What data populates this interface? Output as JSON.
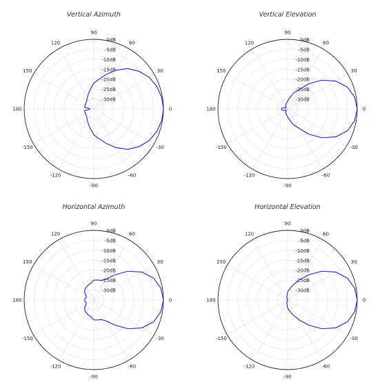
{
  "colors": {
    "pattern": "#1f1fcc",
    "grid": "#c8c8c8",
    "frame": "#222222"
  },
  "chart_data": [
    {
      "type": "polar-line",
      "title": "Vertical Azimuth",
      "angle_ticks": [
        "90",
        "60",
        "30",
        "0",
        "-30",
        "-60",
        "-90",
        "-120",
        "-150",
        "180",
        "150",
        "120"
      ],
      "radial_ticks": [
        "0dB",
        "-5dB",
        "-10dB",
        "-15dB",
        "-20dB",
        "-25dB",
        "-30dB"
      ],
      "rlim": [
        -35,
        0
      ],
      "series": [
        {
          "angles": [
            0,
            10,
            20,
            30,
            40,
            50,
            60,
            70,
            80,
            90,
            100,
            110,
            120,
            130,
            140,
            150,
            160,
            170,
            175,
            180,
            185,
            190,
            200,
            210,
            220,
            230,
            240,
            250,
            260,
            270,
            280,
            290,
            300,
            310,
            320,
            330,
            340,
            350,
            360
          ],
          "values": [
            0,
            -0.4,
            -1.4,
            -3,
            -5.5,
            -8.5,
            -12.5,
            -16.5,
            -19.8,
            -22,
            -25,
            -27,
            -28.5,
            -29.5,
            -30,
            -30.2,
            -30.3,
            -30.3,
            -33,
            -33,
            -33,
            -30.3,
            -30.3,
            -30.2,
            -30,
            -29.5,
            -28.5,
            -27,
            -25,
            -22,
            -19.8,
            -16.5,
            -12.5,
            -8.5,
            -5.5,
            -3,
            -1.4,
            -0.4,
            0
          ]
        }
      ]
    },
    {
      "type": "polar-line",
      "title": "Vertical Elevation",
      "angle_ticks": [
        "90",
        "60",
        "30",
        "0",
        "-30",
        "-60",
        "-90",
        "-120",
        "-150",
        "180",
        "150",
        "120"
      ],
      "radial_ticks": [
        "0dB",
        "-5dB",
        "-10dB",
        "-15dB",
        "-20dB",
        "-25dB",
        "-30dB"
      ],
      "rlim": [
        -35,
        0
      ],
      "series": [
        {
          "angles": [
            0,
            10,
            20,
            30,
            40,
            50,
            60,
            65,
            70,
            80,
            90,
            100,
            120,
            140,
            150,
            160,
            170,
            180,
            190,
            200,
            210,
            220,
            240,
            260,
            270,
            280,
            290,
            295,
            300,
            310,
            320,
            330,
            340,
            350,
            360
          ],
          "values": [
            0,
            -0.8,
            -3,
            -7,
            -12.5,
            -18.5,
            -24,
            -25.5,
            -26.5,
            -29.5,
            -31,
            -32,
            -33,
            -34,
            -34,
            -33,
            -32,
            -32,
            -32,
            -33,
            -34,
            -34,
            -33,
            -32,
            -31,
            -29.5,
            -26.5,
            -25.5,
            -24,
            -18.5,
            -12.5,
            -7,
            -3,
            -0.8,
            0
          ]
        }
      ]
    },
    {
      "type": "polar-line",
      "title": "Horizontal Azimuth",
      "angle_ticks": [
        "90",
        "60",
        "30",
        "0",
        "-30",
        "-60",
        "-90",
        "-120",
        "-150",
        "180",
        "150",
        "120"
      ],
      "radial_ticks": [
        "0dB",
        "-5dB",
        "-10dB",
        "-15dB",
        "-20dB",
        "-25dB",
        "-30dB"
      ],
      "rlim": [
        -35,
        0
      ],
      "series": [
        {
          "angles": [
            0,
            10,
            20,
            30,
            40,
            50,
            60,
            70,
            80,
            90,
            100,
            110,
            120,
            130,
            140,
            150,
            160,
            170,
            180,
            190,
            200,
            210,
            220,
            230,
            240,
            250,
            260,
            270,
            280,
            290,
            300,
            310,
            320,
            330,
            340,
            350,
            360
          ],
          "values": [
            0,
            -0.8,
            -3,
            -7,
            -12.5,
            -18.5,
            -23,
            -24.5,
            -24.8,
            -25,
            -26.5,
            -27,
            -27.5,
            -28,
            -29,
            -30.5,
            -31,
            -30.5,
            -30.5,
            -30.5,
            -31,
            -30.5,
            -29,
            -28,
            -27.5,
            -27,
            -26.5,
            -25,
            -24.8,
            -24.5,
            -23,
            -18.5,
            -12.5,
            -7,
            -3,
            -0.8,
            0
          ]
        }
      ]
    },
    {
      "type": "polar-line",
      "title": "Horizontal Elevation",
      "angle_ticks": [
        "90",
        "60",
        "30",
        "0",
        "-30",
        "-60",
        "-90",
        "-120",
        "-150",
        "180",
        "150",
        "120"
      ],
      "radial_ticks": [
        "0dB",
        "-5dB",
        "-10dB",
        "-15dB",
        "-20dB",
        "-25dB",
        "-30dB"
      ],
      "rlim": [
        -35,
        0
      ],
      "series": [
        {
          "angles": [
            0,
            10,
            20,
            30,
            40,
            50,
            60,
            70,
            80,
            90,
            100,
            110,
            120,
            150,
            180,
            210,
            240,
            250,
            260,
            270,
            280,
            290,
            300,
            310,
            320,
            330,
            340,
            350,
            360
          ],
          "values": [
            0,
            -0.8,
            -3,
            -7,
            -12.5,
            -18.5,
            -23.5,
            -27,
            -29.5,
            -31,
            -33,
            -34,
            -35,
            -35,
            -35,
            -35,
            -35,
            -34,
            -33,
            -31,
            -29.5,
            -27,
            -23.5,
            -18.5,
            -12.5,
            -7,
            -3,
            -0.8,
            0
          ]
        }
      ]
    }
  ]
}
